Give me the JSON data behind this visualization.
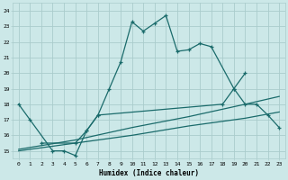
{
  "xlabel": "Humidex (Indice chaleur)",
  "xlim": [
    -0.5,
    23.5
  ],
  "ylim": [
    14.5,
    24.5
  ],
  "xticks": [
    0,
    1,
    2,
    3,
    4,
    5,
    6,
    7,
    8,
    9,
    10,
    11,
    12,
    13,
    14,
    15,
    16,
    17,
    18,
    19,
    20,
    21,
    22,
    23
  ],
  "yticks": [
    15,
    16,
    17,
    18,
    19,
    20,
    21,
    22,
    23,
    24
  ],
  "background_color": "#cce8e8",
  "grid_color": "#aacccc",
  "line_color": "#1a6b6b",
  "line1_x": [
    0,
    1,
    3,
    4,
    5,
    6,
    7,
    8,
    9,
    10,
    11,
    12,
    13,
    14,
    15,
    16,
    17,
    19,
    20,
    21,
    22,
    23
  ],
  "line1_y": [
    18,
    17,
    15,
    15,
    14.7,
    16.3,
    17.3,
    19,
    20.7,
    23.3,
    22.7,
    23.2,
    23.7,
    21.4,
    21.5,
    21.9,
    21.7,
    19,
    18,
    18,
    17.3,
    16.5
  ],
  "line2_x": [
    2,
    5,
    6,
    7,
    18,
    19,
    20
  ],
  "line2_y": [
    15.5,
    15.5,
    16.3,
    17.3,
    18.0,
    19.0,
    20.0
  ],
  "line3_x": [
    0,
    5,
    10,
    15,
    20,
    23
  ],
  "line3_y": [
    15.1,
    15.7,
    16.5,
    17.2,
    18.0,
    18.5
  ],
  "line4_x": [
    0,
    5,
    10,
    15,
    20,
    23
  ],
  "line4_y": [
    15.0,
    15.5,
    16.0,
    16.6,
    17.1,
    17.5
  ]
}
